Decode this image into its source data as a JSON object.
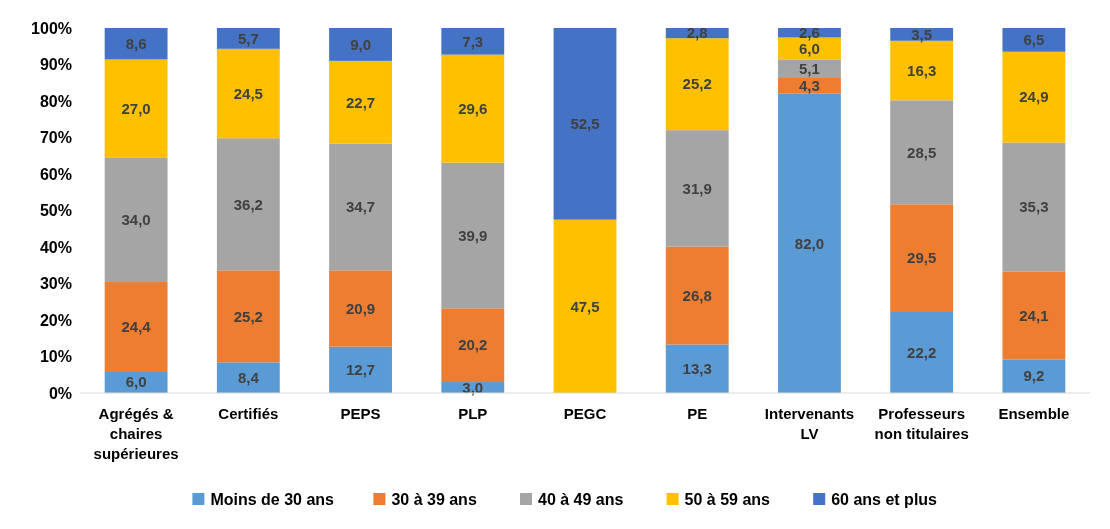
{
  "chart_data": {
    "type": "bar",
    "stacked": true,
    "categories": [
      "Agrégés & chaires supérieures",
      "Certifiés",
      "PEPS",
      "PLP",
      "PEGC",
      "PE",
      "Intervenants LV",
      "Professeurs non titulaires",
      "Ensemble"
    ],
    "ylim": [
      0,
      100
    ],
    "yticks": [
      {
        "value": 0,
        "label": "0%"
      },
      {
        "value": 10,
        "label": "10%"
      },
      {
        "value": 20,
        "label": "20%"
      },
      {
        "value": 30,
        "label": "30%"
      },
      {
        "value": 40,
        "label": "40%"
      },
      {
        "value": 50,
        "label": "50%"
      },
      {
        "value": 60,
        "label": "60%"
      },
      {
        "value": 70,
        "label": "70%"
      },
      {
        "value": 80,
        "label": "80%"
      },
      {
        "value": 90,
        "label": "90%"
      },
      {
        "value": 100,
        "label": "100%"
      }
    ],
    "legend": "bottom",
    "series": [
      {
        "name": "Moins de 30 ans",
        "color": "#5b9bd5",
        "values": [
          6.0,
          8.4,
          12.7,
          3.0,
          null,
          13.3,
          82.0,
          22.2,
          9.2
        ],
        "value_labels": [
          "6,0",
          "8,4",
          "12,7",
          "3,0",
          null,
          "13,3",
          "82,0",
          "22,2",
          "9,2"
        ]
      },
      {
        "name": "30 à 39 ans",
        "color": "#ed7d31",
        "values": [
          24.4,
          25.2,
          20.9,
          20.2,
          null,
          26.8,
          4.3,
          29.5,
          24.1
        ],
        "value_labels": [
          "24,4",
          "25,2",
          "20,9",
          "20,2",
          null,
          "26,8",
          "4,3",
          "29,5",
          "24,1"
        ]
      },
      {
        "name": "40 à 49 ans",
        "color": "#a5a5a5",
        "values": [
          34.0,
          36.2,
          34.7,
          39.9,
          null,
          31.9,
          5.1,
          28.5,
          35.3
        ],
        "value_labels": [
          "34,0",
          "36,2",
          "34,7",
          "39,9",
          null,
          "31,9",
          "5,1",
          "28,5",
          "35,3"
        ]
      },
      {
        "name": "50 à 59 ans",
        "color": "#ffc000",
        "values": [
          27.0,
          24.5,
          22.7,
          29.6,
          47.5,
          25.2,
          6.0,
          16.3,
          24.9
        ],
        "value_labels": [
          "27,0",
          "24,5",
          "22,7",
          "29,6",
          "47,5",
          "25,2",
          "6,0",
          "16,3",
          "24,9"
        ]
      },
      {
        "name": "60 ans et plus",
        "color": "#4472c4",
        "values": [
          8.6,
          5.7,
          9.0,
          7.3,
          52.5,
          2.8,
          2.6,
          3.5,
          6.5
        ],
        "value_labels": [
          "8,6",
          "5,7",
          "9,0",
          "7,3",
          "52,5",
          "2,8",
          "2,6",
          "3,5",
          "6,5"
        ]
      }
    ]
  }
}
